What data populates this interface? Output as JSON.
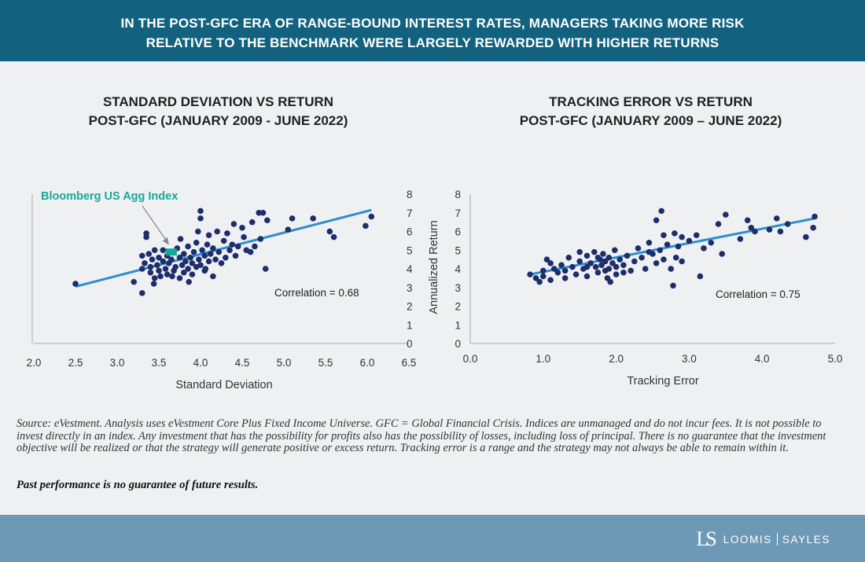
{
  "header": {
    "line1": "IN THE POST-GFC ERA OF RANGE-BOUND INTEREST RATES, MANAGERS TAKING MORE RISK",
    "line2": "RELATIVE TO THE BENCHMARK WERE LARGELY REWARDED WITH HIGHER RETURNS"
  },
  "colors": {
    "banner": "#12627f",
    "footer": "#6e99b6",
    "point": "#1e2d6b",
    "trend": "#2c8fcf",
    "highlight": "#19a79a",
    "axis": "#aaaaaa"
  },
  "chart_data": [
    {
      "type": "scatter",
      "title_line1": "STANDARD DEVIATION VS RETURN",
      "title_line2": "POST-GFC (JANUARY 2009 - JUNE 2022)",
      "xlabel": "Standard Deviation",
      "ylabel": "",
      "xlim": [
        2.0,
        6.5
      ],
      "ylim": [
        0,
        8
      ],
      "x_ticks": [
        "2.0",
        "2.5",
        "3.0",
        "3.5",
        "4.0",
        "4.5",
        "5.0",
        "5.5",
        "6.0",
        "6.5"
      ],
      "y_ticks": [
        "0",
        "1",
        "2",
        "3",
        "4",
        "5",
        "6",
        "7",
        "8"
      ],
      "y_axis_side": "right",
      "correlation_label": "Correlation = 0.68",
      "highlight": {
        "label": "Bloomberg US Agg Index",
        "x": 3.65,
        "y": 4.9
      },
      "trendline": [
        [
          2.5,
          3.05
        ],
        [
          6.05,
          7.15
        ]
      ],
      "points": [
        [
          2.5,
          3.2
        ],
        [
          3.2,
          3.3
        ],
        [
          3.3,
          2.7
        ],
        [
          3.35,
          5.7
        ],
        [
          3.35,
          5.9
        ],
        [
          3.3,
          4.7
        ],
        [
          3.33,
          4.3
        ],
        [
          3.38,
          4.8
        ],
        [
          3.4,
          4.1
        ],
        [
          3.4,
          3.8
        ],
        [
          3.42,
          4.5
        ],
        [
          3.45,
          3.5
        ],
        [
          3.45,
          5.0
        ],
        [
          3.48,
          4.2
        ],
        [
          3.5,
          3.9
        ],
        [
          3.5,
          4.6
        ],
        [
          3.52,
          3.6
        ],
        [
          3.55,
          4.4
        ],
        [
          3.55,
          5.0
        ],
        [
          3.58,
          4.0
        ],
        [
          3.6,
          3.7
        ],
        [
          3.6,
          4.7
        ],
        [
          3.62,
          4.3
        ],
        [
          3.65,
          4.5
        ],
        [
          3.68,
          3.9
        ],
        [
          3.7,
          4.1
        ],
        [
          3.72,
          5.1
        ],
        [
          3.75,
          3.5
        ],
        [
          3.75,
          4.6
        ],
        [
          3.78,
          4.2
        ],
        [
          3.8,
          4.8
        ],
        [
          3.8,
          3.8
        ],
        [
          3.82,
          4.4
        ],
        [
          3.85,
          4.0
        ],
        [
          3.85,
          5.2
        ],
        [
          3.88,
          4.6
        ],
        [
          3.9,
          4.3
        ],
        [
          3.9,
          3.7
        ],
        [
          3.92,
          4.9
        ],
        [
          3.95,
          4.1
        ],
        [
          3.95,
          5.4
        ],
        [
          3.97,
          6.0
        ],
        [
          3.98,
          4.5
        ],
        [
          4.0,
          7.1
        ],
        [
          4.0,
          6.7
        ],
        [
          4.0,
          4.2
        ],
        [
          4.02,
          5.0
        ],
        [
          4.05,
          4.7
        ],
        [
          4.05,
          3.9
        ],
        [
          4.08,
          5.3
        ],
        [
          4.1,
          4.4
        ],
        [
          4.1,
          5.8
        ],
        [
          4.12,
          4.8
        ],
        [
          4.15,
          3.6
        ],
        [
          4.15,
          5.1
        ],
        [
          4.18,
          4.5
        ],
        [
          4.2,
          6.0
        ],
        [
          4.22,
          4.9
        ],
        [
          4.25,
          4.3
        ],
        [
          4.28,
          5.5
        ],
        [
          4.3,
          4.6
        ],
        [
          4.32,
          5.9
        ],
        [
          4.35,
          5.0
        ],
        [
          4.38,
          5.3
        ],
        [
          4.4,
          6.4
        ],
        [
          4.42,
          4.7
        ],
        [
          4.45,
          5.2
        ],
        [
          4.5,
          6.2
        ],
        [
          4.52,
          5.7
        ],
        [
          4.55,
          5.0
        ],
        [
          4.6,
          4.9
        ],
        [
          4.62,
          6.5
        ],
        [
          4.65,
          5.2
        ],
        [
          4.7,
          7.0
        ],
        [
          4.72,
          5.6
        ],
        [
          4.75,
          7.0
        ],
        [
          4.78,
          4.0
        ],
        [
          4.8,
          6.6
        ],
        [
          5.05,
          6.1
        ],
        [
          5.1,
          6.7
        ],
        [
          5.35,
          6.7
        ],
        [
          5.55,
          6.0
        ],
        [
          5.6,
          5.7
        ],
        [
          5.98,
          6.3
        ],
        [
          6.05,
          6.8
        ],
        [
          3.3,
          4.0
        ],
        [
          3.44,
          3.2
        ],
        [
          3.66,
          3.6
        ],
        [
          3.76,
          5.6
        ],
        [
          3.86,
          3.3
        ],
        [
          4.06,
          4.0
        ]
      ]
    },
    {
      "type": "scatter",
      "title_line1": "TRACKING ERROR VS RETURN",
      "title_line2": "POST-GFC (JANUARY 2009 – JUNE 2022)",
      "xlabel": "Tracking Error",
      "ylabel": "Annualized Return",
      "xlim": [
        0.0,
        5.0
      ],
      "ylim": [
        0,
        8
      ],
      "x_ticks": [
        "0.0",
        "1.0",
        "2.0",
        "3.0",
        "4.0",
        "5.0"
      ],
      "y_ticks": [
        "0",
        "1",
        "2",
        "3",
        "4",
        "5",
        "6",
        "7",
        "8"
      ],
      "y_axis_side": "left",
      "correlation_label": "Correlation = 0.75",
      "trendline": [
        [
          0.82,
          3.7
        ],
        [
          4.72,
          6.7
        ]
      ],
      "points": [
        [
          0.82,
          3.7
        ],
        [
          0.9,
          3.5
        ],
        [
          0.95,
          3.3
        ],
        [
          1.0,
          3.9
        ],
        [
          1.0,
          3.6
        ],
        [
          1.05,
          4.5
        ],
        [
          1.1,
          3.4
        ],
        [
          1.15,
          4.0
        ],
        [
          1.2,
          3.8
        ],
        [
          1.25,
          4.2
        ],
        [
          1.3,
          3.5
        ],
        [
          1.35,
          4.6
        ],
        [
          1.4,
          4.1
        ],
        [
          1.45,
          3.7
        ],
        [
          1.5,
          4.9
        ],
        [
          1.5,
          4.4
        ],
        [
          1.55,
          4.0
        ],
        [
          1.6,
          4.7
        ],
        [
          1.6,
          3.6
        ],
        [
          1.65,
          4.3
        ],
        [
          1.7,
          4.9
        ],
        [
          1.72,
          4.1
        ],
        [
          1.75,
          3.8
        ],
        [
          1.78,
          4.5
        ],
        [
          1.8,
          4.2
        ],
        [
          1.82,
          4.8
        ],
        [
          1.85,
          3.9
        ],
        [
          1.85,
          4.4
        ],
        [
          1.88,
          3.5
        ],
        [
          1.9,
          4.6
        ],
        [
          1.9,
          4.0
        ],
        [
          1.92,
          3.3
        ],
        [
          1.95,
          4.3
        ],
        [
          1.98,
          5.0
        ],
        [
          2.0,
          4.1
        ],
        [
          2.0,
          3.7
        ],
        [
          2.05,
          4.5
        ],
        [
          2.1,
          4.2
        ],
        [
          2.15,
          4.7
        ],
        [
          2.2,
          3.9
        ],
        [
          2.25,
          4.4
        ],
        [
          2.3,
          5.1
        ],
        [
          2.35,
          4.6
        ],
        [
          2.4,
          4.0
        ],
        [
          2.45,
          5.4
        ],
        [
          2.5,
          4.8
        ],
        [
          2.55,
          4.3
        ],
        [
          2.55,
          6.6
        ],
        [
          2.6,
          5.0
        ],
        [
          2.62,
          7.1
        ],
        [
          2.65,
          4.5
        ],
        [
          2.7,
          5.3
        ],
        [
          2.75,
          4.0
        ],
        [
          2.78,
          3.1
        ],
        [
          2.8,
          5.9
        ],
        [
          2.82,
          4.6
        ],
        [
          2.85,
          5.2
        ],
        [
          2.9,
          4.4
        ],
        [
          3.0,
          5.5
        ],
        [
          3.1,
          5.8
        ],
        [
          3.15,
          3.6
        ],
        [
          3.2,
          5.1
        ],
        [
          3.3,
          5.4
        ],
        [
          3.4,
          6.4
        ],
        [
          3.45,
          4.8
        ],
        [
          3.5,
          6.9
        ],
        [
          3.7,
          5.6
        ],
        [
          3.8,
          6.6
        ],
        [
          3.85,
          6.2
        ],
        [
          3.9,
          6.0
        ],
        [
          4.1,
          6.1
        ],
        [
          4.2,
          6.7
        ],
        [
          4.25,
          6.0
        ],
        [
          4.35,
          6.4
        ],
        [
          4.6,
          5.7
        ],
        [
          4.72,
          6.8
        ],
        [
          4.7,
          6.2
        ],
        [
          1.1,
          4.3
        ],
        [
          1.3,
          3.9
        ],
        [
          1.6,
          4.1
        ],
        [
          1.75,
          4.6
        ],
        [
          2.1,
          3.8
        ],
        [
          2.45,
          4.9
        ],
        [
          2.65,
          5.8
        ],
        [
          2.9,
          5.7
        ]
      ]
    }
  ],
  "source": {
    "text": "Source: eVestment. Analysis uses eVestment Core Plus Fixed Income Universe. GFC = Global Financial Crisis. Indices are unmanaged and do not incur fees. It is not possible to invest directly in an index. Any investment that has the possibility for profits also has the possibility of losses, including loss of principal. There is no guarantee that the investment objective will be realized or that the strategy will generate positive or excess return. Tracking error is a range and the strategy may not always be able to remain within it.",
    "bold": "Past performance is no guarantee of future results."
  },
  "footer": {
    "logo_mark": "LS",
    "brand_left": "LOOMIS",
    "brand_right": "SAYLES"
  }
}
